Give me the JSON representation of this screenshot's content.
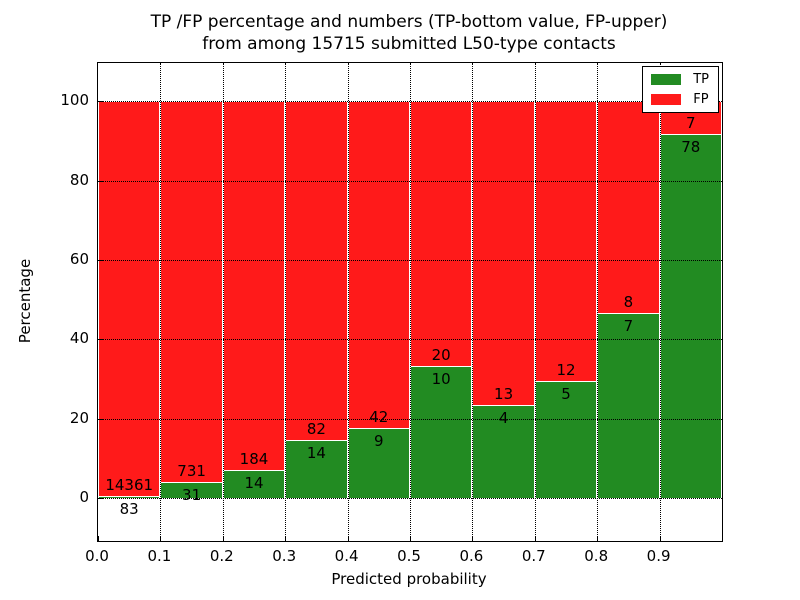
{
  "title": {
    "line1": "TP /FP percentage and numbers (TP-bottom value, FP-upper)",
    "line2": "from among 15715 submitted L50-type contacts"
  },
  "axes": {
    "xlabel": "Predicted probability",
    "ylabel": "Percentage",
    "xtick_labels": [
      "0.0",
      "0.1",
      "0.2",
      "0.3",
      "0.4",
      "0.5",
      "0.6",
      "0.7",
      "0.8",
      "0.9"
    ],
    "xtick_values": [
      0.0,
      0.1,
      0.2,
      0.3,
      0.4,
      0.5,
      0.6,
      0.7,
      0.8,
      0.9
    ],
    "ytick_values": [
      0,
      20,
      40,
      60,
      80,
      100
    ],
    "xlim": [
      0.0,
      1.0
    ],
    "ylim": [
      -10.8,
      109.6
    ],
    "grid": "dotted"
  },
  "legend": {
    "position": "upper-right",
    "items": [
      {
        "label": "TP",
        "color": "#228b22"
      },
      {
        "label": "FP",
        "color": "#ff1a1a"
      }
    ]
  },
  "chart_data": {
    "type": "bar",
    "stacked": true,
    "normalized_to_percent": true,
    "title": "TP /FP percentage and numbers (TP-bottom value, FP-upper) from among 15715 submitted L50-type contacts",
    "xlabel": "Predicted probability",
    "ylabel": "Percentage",
    "total_contacts": 15715,
    "bin_edges": [
      0.0,
      0.1,
      0.2,
      0.3,
      0.4,
      0.5,
      0.6,
      0.7,
      0.8,
      0.9,
      1.0
    ],
    "categories": [
      "0.0-0.1",
      "0.1-0.2",
      "0.2-0.3",
      "0.3-0.4",
      "0.4-0.5",
      "0.5-0.6",
      "0.6-0.7",
      "0.7-0.8",
      "0.8-0.9",
      "0.9-1.0"
    ],
    "series": [
      {
        "name": "TP",
        "color": "#228b22",
        "counts": [
          83,
          31,
          14,
          14,
          9,
          10,
          4,
          5,
          7,
          78
        ]
      },
      {
        "name": "FP",
        "color": "#ff1a1a",
        "counts": [
          14361,
          731,
          184,
          82,
          42,
          20,
          13,
          12,
          8,
          7
        ]
      }
    ],
    "tp_percent": [
      0.57,
      4.07,
      7.07,
      14.58,
      17.65,
      33.33,
      23.53,
      29.41,
      46.67,
      91.76
    ],
    "ylim": [
      -10.8,
      109.6
    ],
    "legend_position": "upper right",
    "grid": true
  }
}
